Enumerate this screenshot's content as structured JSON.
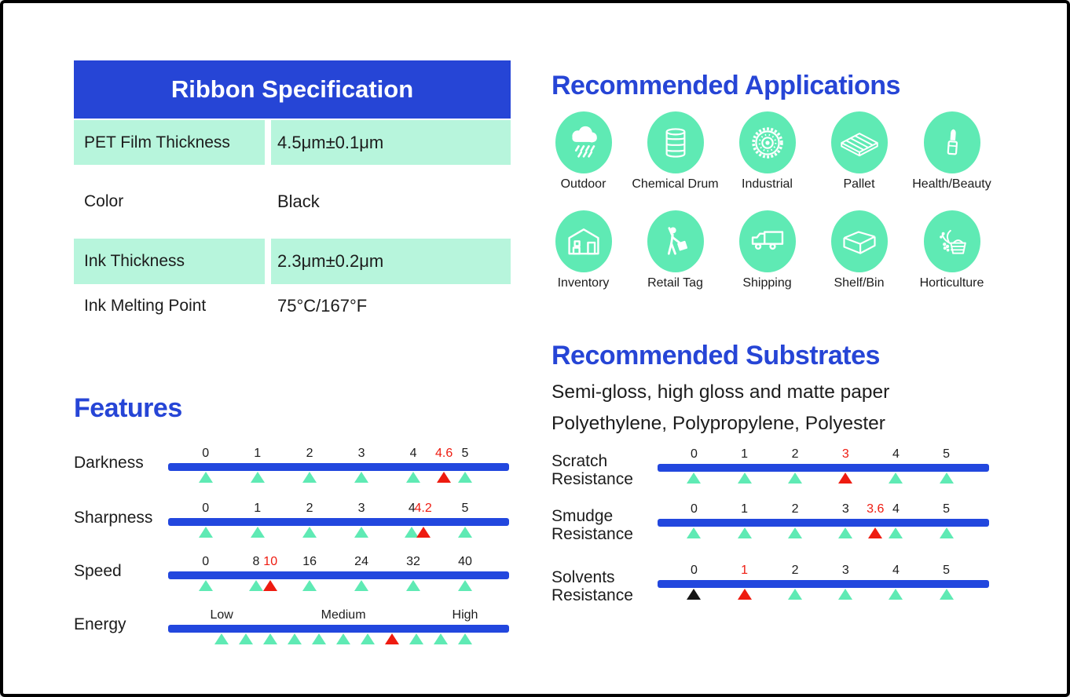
{
  "colors": {
    "blue": "#2645d6",
    "bar-blue": "#2247de",
    "mint": "#5feab4",
    "mint-light": "#b7f5dc",
    "red": "#ee1b10",
    "ink": "#1c1c1c"
  },
  "spec_table": {
    "title": "Ribbon Specification",
    "rows": [
      {
        "label": "PET Film Thickness",
        "value": "4.5μm±0.1μm"
      },
      {
        "label": "Color",
        "value": "Black"
      },
      {
        "label": "Ink Thickness",
        "value": "2.3μm±0.2μm"
      },
      {
        "label": "Ink Melting Point",
        "value": "75°C/167°F"
      }
    ]
  },
  "applications": {
    "title": "Recommended Applications",
    "items": [
      {
        "label": "Outdoor",
        "icon": "rain-cloud-icon"
      },
      {
        "label": "Chemical Drum",
        "icon": "drum-icon"
      },
      {
        "label": "Industrial",
        "icon": "gear-icon"
      },
      {
        "label": "Pallet",
        "icon": "pallet-icon"
      },
      {
        "label": "Health/Beauty",
        "icon": "lipstick-icon"
      },
      {
        "label": "Inventory",
        "icon": "warehouse-icon"
      },
      {
        "label": "Retail Tag",
        "icon": "shopper-icon"
      },
      {
        "label": "Shipping",
        "icon": "truck-icon"
      },
      {
        "label": "Shelf/Bin",
        "icon": "bin-icon"
      },
      {
        "label": "Horticulture",
        "icon": "basket-icon"
      }
    ]
  },
  "features": {
    "title": "Features",
    "scales": [
      {
        "label": "Darkness",
        "value": 4.6,
        "marks": [
          {
            "text": "0",
            "x": 0.11,
            "tri": "mint"
          },
          {
            "text": "1",
            "x": 0.262,
            "tri": "mint"
          },
          {
            "text": "2",
            "x": 0.415,
            "tri": "mint"
          },
          {
            "text": "3",
            "x": 0.567,
            "tri": "mint"
          },
          {
            "text": "4",
            "x": 0.719,
            "tri": "mint"
          },
          {
            "text": "4.6",
            "x": 0.809,
            "tri": "red",
            "red_text": true
          },
          {
            "text": "5",
            "x": 0.871,
            "tri": "mint"
          }
        ]
      },
      {
        "label": "Sharpness",
        "value": 4.2,
        "marks": [
          {
            "text": "0",
            "x": 0.11,
            "tri": "mint"
          },
          {
            "text": "1",
            "x": 0.262,
            "tri": "mint"
          },
          {
            "text": "2",
            "x": 0.415,
            "tri": "mint"
          },
          {
            "text": "3",
            "x": 0.567,
            "tri": "mint"
          },
          {
            "text": "4",
            "x": 0.715,
            "tri": "mint"
          },
          {
            "text": "4.2",
            "x": 0.748,
            "tri": "red",
            "red_text": true
          },
          {
            "text": "5",
            "x": 0.871,
            "tri": "mint"
          }
        ]
      },
      {
        "label": "Speed",
        "value": 10,
        "marks": [
          {
            "text": "0",
            "x": 0.11,
            "tri": "mint"
          },
          {
            "text": "8",
            "x": 0.258,
            "tri": "mint"
          },
          {
            "text": "10",
            "x": 0.3,
            "tri": "red",
            "red_text": true
          },
          {
            "text": "16",
            "x": 0.415,
            "tri": "mint"
          },
          {
            "text": "24",
            "x": 0.567,
            "tri": "mint"
          },
          {
            "text": "32",
            "x": 0.719,
            "tri": "mint"
          },
          {
            "text": "40",
            "x": 0.871,
            "tri": "mint"
          }
        ]
      },
      {
        "label": "Energy",
        "value": "Medium-High",
        "marks": [
          {
            "text": "Low",
            "x": 0.157,
            "tri": "mint"
          },
          {
            "x": 0.228,
            "tri": "mint"
          },
          {
            "x": 0.3,
            "tri": "mint"
          },
          {
            "x": 0.371,
            "tri": "mint"
          },
          {
            "x": 0.443,
            "tri": "mint"
          },
          {
            "text": "Medium",
            "x": 0.514,
            "tri": "mint"
          },
          {
            "x": 0.586,
            "tri": "mint"
          },
          {
            "x": 0.657,
            "tri": "red"
          },
          {
            "x": 0.728,
            "tri": "mint"
          },
          {
            "x": 0.8,
            "tri": "mint"
          },
          {
            "text": "High",
            "x": 0.871,
            "tri": "mint"
          }
        ]
      }
    ]
  },
  "substrates": {
    "title": "Recommended Substrates",
    "lines": [
      "Semi-gloss, high gloss and matte paper",
      "Polyethylene, Polypropylene, Polyester"
    ],
    "scales": [
      {
        "label": "Scratch\nResistance",
        "value": 3,
        "marks": [
          {
            "text": "0",
            "x": 0.11,
            "tri": "mint"
          },
          {
            "text": "1",
            "x": 0.262,
            "tri": "mint"
          },
          {
            "text": "2",
            "x": 0.415,
            "tri": "mint"
          },
          {
            "text": "3",
            "x": 0.567,
            "tri": "red",
            "red_text": true
          },
          {
            "text": "4",
            "x": 0.719,
            "tri": "mint"
          },
          {
            "text": "5",
            "x": 0.871,
            "tri": "mint"
          }
        ]
      },
      {
        "label": "Smudge\nResistance",
        "value": 3.6,
        "marks": [
          {
            "text": "0",
            "x": 0.11,
            "tri": "mint"
          },
          {
            "text": "1",
            "x": 0.262,
            "tri": "mint"
          },
          {
            "text": "2",
            "x": 0.415,
            "tri": "mint"
          },
          {
            "text": "3",
            "x": 0.567,
            "tri": "mint"
          },
          {
            "text": "3.6",
            "x": 0.657,
            "tri": "red",
            "red_text": true
          },
          {
            "text": "4",
            "x": 0.719,
            "tri": "mint"
          },
          {
            "text": "5",
            "x": 0.871,
            "tri": "mint"
          }
        ]
      },
      {
        "label": "Solvents\nResistance",
        "value": 1,
        "marks": [
          {
            "text": "0",
            "x": 0.11,
            "tri": "black"
          },
          {
            "text": "1",
            "x": 0.262,
            "tri": "red",
            "red_text": true
          },
          {
            "text": "2",
            "x": 0.415,
            "tri": "mint"
          },
          {
            "text": "3",
            "x": 0.567,
            "tri": "mint"
          },
          {
            "text": "4",
            "x": 0.719,
            "tri": "mint"
          },
          {
            "text": "5",
            "x": 0.871,
            "tri": "mint"
          }
        ]
      }
    ]
  }
}
